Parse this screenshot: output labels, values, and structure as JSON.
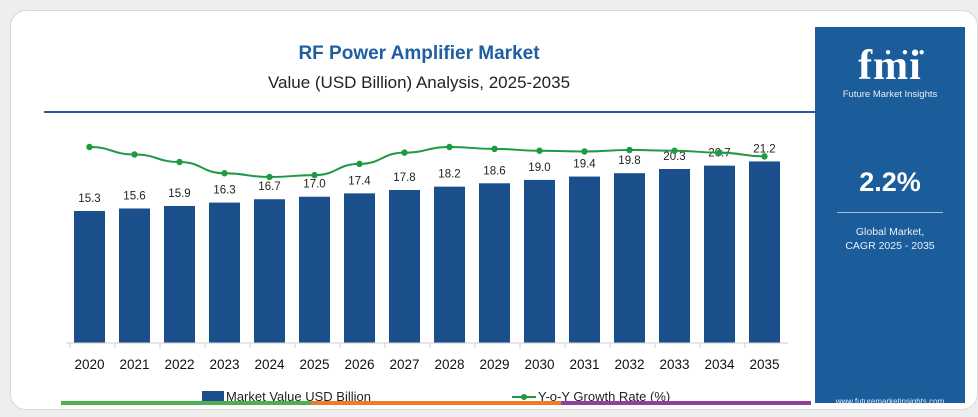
{
  "header": {
    "title": "RF Power Amplifier Market",
    "subtitle": "Value (USD Billion) Analysis, 2025-2035"
  },
  "side_panel": {
    "logo_text": "fmi",
    "logo_subtitle": "Future Market Insights",
    "cagr_value": "2.2%",
    "cagr_label_line1": "Global Market,",
    "cagr_label_line2": "CAGR 2025 - 2035",
    "website": "www.futuremarketinsights.com"
  },
  "legend": {
    "bar_label": "Market Value USD Billion",
    "line_label": "Y-o-Y Growth Rate (%)"
  },
  "colors": {
    "bar": "#1b4f8c",
    "line": "#1e9a43",
    "title": "#1f5ea0",
    "panel": "#1b5d9a",
    "bottom_bar": [
      "#4caf50",
      "#f07b2a",
      "#8e3fa0"
    ]
  },
  "chart_data": {
    "type": "bar",
    "title": "RF Power Amplifier Market",
    "subtitle": "Value (USD Billion) Analysis, 2025-2035",
    "categories": [
      "2020",
      "2021",
      "2022",
      "2023",
      "2024",
      "2025",
      "2026",
      "2027",
      "2028",
      "2029",
      "2030",
      "2031",
      "2032",
      "2033",
      "2034",
      "2035"
    ],
    "series": [
      {
        "name": "Market Value USD Billion",
        "type": "bar",
        "values": [
          15.3,
          15.6,
          15.9,
          16.3,
          16.7,
          17.0,
          17.4,
          17.8,
          18.2,
          18.6,
          19.0,
          19.4,
          19.8,
          20.3,
          20.7,
          21.2
        ],
        "labels": [
          "15.3",
          "15.6",
          "15.9",
          "16.3",
          "16.7",
          "17.0",
          "17.4",
          "17.8",
          "18.2",
          "18.6",
          "19.0",
          "19.4",
          "19.8",
          "20.3",
          "20.7",
          "21.2"
        ]
      },
      {
        "name": "Y-o-Y Growth Rate (%)",
        "type": "line",
        "values": [
          2.4,
          2.2,
          2.0,
          1.7,
          1.6,
          1.65,
          1.95,
          2.25,
          2.4,
          2.35,
          2.3,
          2.28,
          2.32,
          2.3,
          2.25,
          2.15
        ]
      }
    ],
    "legend_position": "bottom",
    "grid": false
  }
}
